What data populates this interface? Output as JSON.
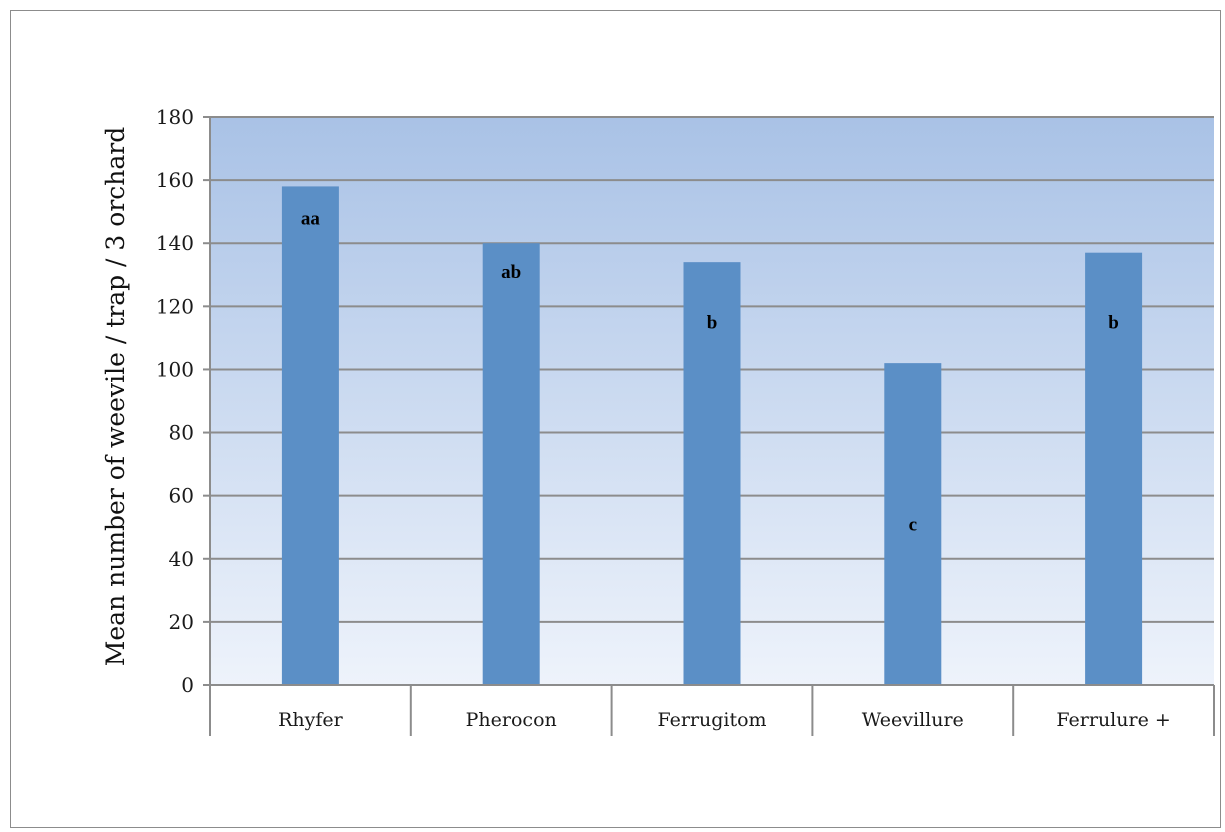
{
  "chart_data": {
    "type": "bar",
    "categories": [
      "Rhyfer",
      "Pherocon",
      "Ferrugitom",
      "Weevillure",
      "Ferrulure +"
    ],
    "values": [
      158,
      140,
      134,
      102,
      137
    ],
    "data_labels": [
      "aa",
      "ab",
      "b",
      "c",
      "b"
    ],
    "data_label_y": [
      146,
      129,
      113,
      49,
      113
    ],
    "title": "",
    "xlabel": "",
    "ylabel": "Mean number of weevile / trap / 3 orchard",
    "ylim": [
      0,
      180
    ],
    "yticks": [
      0,
      20,
      40,
      60,
      80,
      100,
      120,
      140,
      160,
      180
    ],
    "grid": true,
    "legend": "none",
    "colors": {
      "bar": "#5b8fc6",
      "plot_bg_top": "#a9c2e6",
      "plot_bg_bottom": "#eef3fb",
      "gridline": "#8c8c8c",
      "axis": "#8c8c8c"
    }
  }
}
